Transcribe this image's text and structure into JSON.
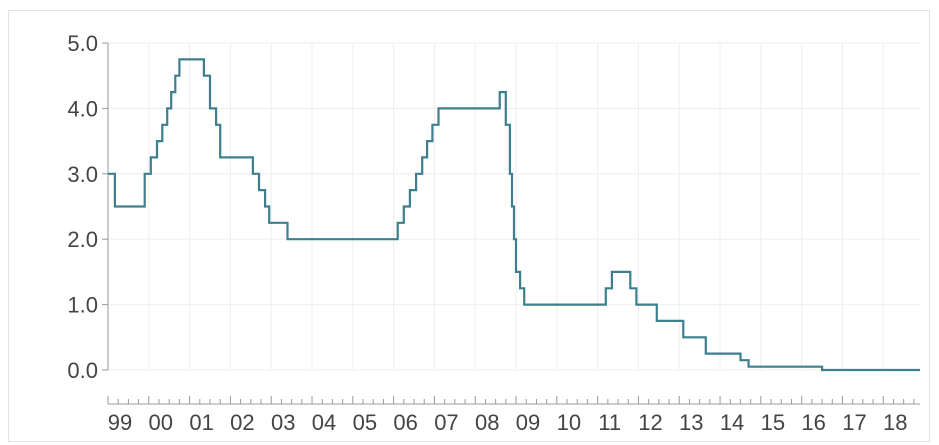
{
  "chart_data": {
    "type": "line",
    "step": true,
    "title": "",
    "xlabel": "",
    "ylabel": "",
    "xlim": [
      1999.0,
      2018.9
    ],
    "ylim": [
      0.0,
      5.0
    ],
    "grid": true,
    "colors": {
      "series": "#3d7f8e",
      "grid": "#eeeeee",
      "axis": "#999999",
      "frame": "#e2e2e2"
    },
    "y_ticks": [
      {
        "value": 0.0,
        "label": "0.0"
      },
      {
        "value": 1.0,
        "label": "1.0"
      },
      {
        "value": 2.0,
        "label": "2.0"
      },
      {
        "value": 3.0,
        "label": "3.0"
      },
      {
        "value": 4.0,
        "label": "4.0"
      },
      {
        "value": 5.0,
        "label": "5.0"
      }
    ],
    "x_ticks": [
      {
        "value": 1999,
        "label": "99"
      },
      {
        "value": 2000,
        "label": "00"
      },
      {
        "value": 2001,
        "label": "01"
      },
      {
        "value": 2002,
        "label": "02"
      },
      {
        "value": 2003,
        "label": "03"
      },
      {
        "value": 2004,
        "label": "04"
      },
      {
        "value": 2005,
        "label": "05"
      },
      {
        "value": 2006,
        "label": "06"
      },
      {
        "value": 2007,
        "label": "07"
      },
      {
        "value": 2008,
        "label": "08"
      },
      {
        "value": 2009,
        "label": "09"
      },
      {
        "value": 2010,
        "label": "10"
      },
      {
        "value": 2011,
        "label": "11"
      },
      {
        "value": 2012,
        "label": "12"
      },
      {
        "value": 2013,
        "label": "13"
      },
      {
        "value": 2014,
        "label": "14"
      },
      {
        "value": 2015,
        "label": "15"
      },
      {
        "value": 2016,
        "label": "16"
      },
      {
        "value": 2017,
        "label": "17"
      },
      {
        "value": 2018,
        "label": "18"
      }
    ],
    "series": [
      {
        "x": [
          1999.0,
          1999.17,
          1999.9,
          2000.05,
          2000.2,
          2000.33,
          2000.45,
          2000.55,
          2000.65,
          2000.75,
          2000.85,
          2001.35,
          2001.5,
          2001.65,
          2001.75,
          2002.5,
          2002.55,
          2002.7,
          2002.85,
          2002.95,
          2003.4,
          2003.55,
          2003.7,
          2006.0,
          2006.1,
          2006.25,
          2006.4,
          2006.55,
          2006.7,
          2006.82,
          2006.95,
          2007.1,
          2007.3,
          2007.5,
          2007.65,
          2008.6,
          2008.75,
          2008.85,
          2008.9,
          2008.95,
          2009.0,
          2009.1,
          2009.2,
          2009.35,
          2011.2,
          2011.35,
          2011.5,
          2011.8,
          2011.95,
          2012.45,
          2012.9,
          2013.1,
          2013.5,
          2013.65,
          2014.1,
          2014.5,
          2014.7,
          2014.85,
          2015.0,
          2016.5,
          2018.9
        ],
        "y": [
          3.0,
          2.5,
          3.0,
          3.25,
          3.5,
          3.75,
          4.0,
          4.25,
          4.5,
          4.75,
          4.75,
          4.5,
          4.0,
          3.75,
          3.25,
          3.25,
          3.0,
          2.75,
          2.5,
          2.25,
          2.0,
          2.0,
          2.0,
          2.0,
          2.25,
          2.5,
          2.75,
          3.0,
          3.25,
          3.5,
          3.75,
          4.0,
          4.0,
          4.0,
          4.0,
          4.25,
          3.75,
          3.0,
          2.5,
          2.0,
          1.5,
          1.25,
          1.0,
          1.0,
          1.25,
          1.5,
          1.5,
          1.25,
          1.0,
          0.75,
          0.75,
          0.5,
          0.5,
          0.25,
          0.25,
          0.15,
          0.05,
          0.05,
          0.05,
          0.0,
          0.0
        ]
      }
    ]
  }
}
